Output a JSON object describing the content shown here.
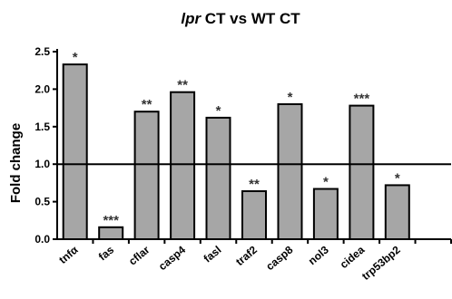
{
  "chart_data": {
    "type": "bar",
    "title_italic": "lpr",
    "title_rest": " CT vs WT CT",
    "ylabel": "Fold change",
    "xlabel": "",
    "ylim": [
      0,
      2.5
    ],
    "yticks": [
      "0.0",
      "0.5",
      "1.0",
      "1.5",
      "2.0",
      "2.5"
    ],
    "reference_line": 1.0,
    "grid": false,
    "categories": [
      "tnfα",
      "fas",
      "cflar",
      "casp4",
      "fasl",
      "traf2",
      "casp8",
      "nol3",
      "cidea",
      "trp53bp2"
    ],
    "values": [
      2.33,
      0.16,
      1.7,
      1.96,
      1.62,
      0.64,
      1.8,
      0.67,
      1.78,
      0.72
    ],
    "significance": [
      "*",
      "***",
      "**",
      "**",
      "*",
      "**",
      "*",
      "*",
      "***",
      "*"
    ],
    "bar_color": "#a6a6a6",
    "edge_color": "#000000"
  }
}
